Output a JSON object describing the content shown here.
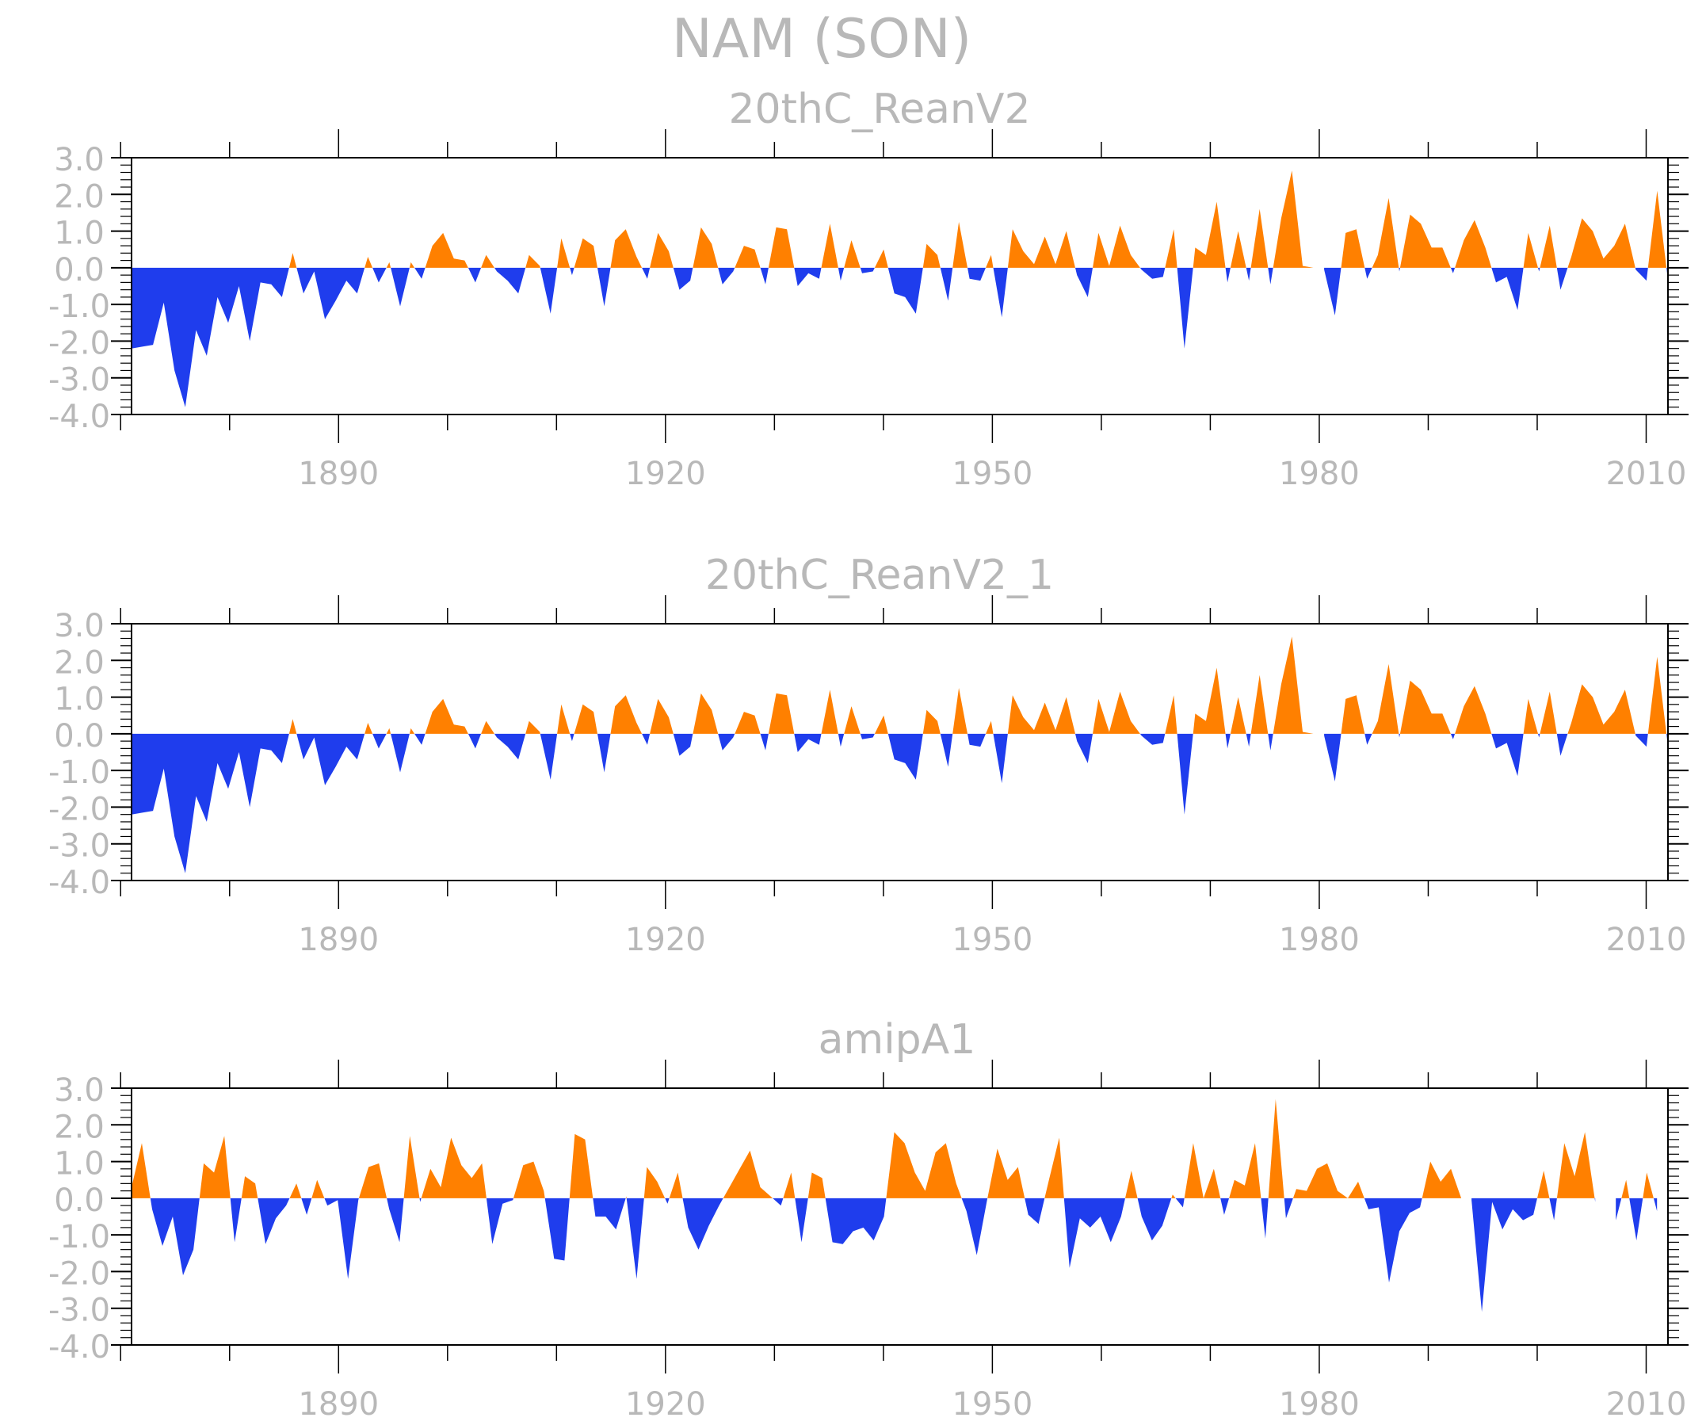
{
  "figure": {
    "title": "NAM (SON)"
  },
  "colors": {
    "positive": "#ff8000",
    "negative": "#1f3ded",
    "frame": "#000000",
    "text": "#b8b8b8"
  },
  "chart_data": [
    {
      "type": "area",
      "title": "20thC_ReanV2",
      "ylim": [
        -4.0,
        3.0
      ],
      "yticks": [
        "3.0",
        "2.0",
        "1.0",
        "0.0",
        "-1.0",
        "-2.0",
        "-3.0",
        "-4.0"
      ],
      "xlim": [
        1871,
        2012
      ],
      "xticks": [
        "1890",
        "1920",
        "1950",
        "1980",
        "2010"
      ],
      "years": [
        1871,
        2012
      ],
      "values": [
        -2.2,
        -2.15,
        -2.1,
        -0.95,
        -2.8,
        -3.8,
        -1.7,
        -2.4,
        -0.8,
        -1.5,
        -0.5,
        -2.0,
        -0.4,
        -0.45,
        -0.8,
        0.4,
        -0.7,
        -0.1,
        -1.4,
        -0.9,
        -0.35,
        -0.7,
        0.3,
        -0.4,
        0.15,
        -1.05,
        0.15,
        -0.3,
        0.6,
        0.95,
        0.25,
        0.2,
        -0.4,
        0.35,
        -0.1,
        -0.35,
        -0.7,
        0.35,
        0.05,
        -1.25,
        0.8,
        -0.2,
        0.8,
        0.6,
        -1.05,
        0.75,
        1.05,
        0.3,
        -0.3,
        0.95,
        0.45,
        -0.6,
        -0.35,
        1.1,
        0.65,
        -0.45,
        -0.1,
        0.6,
        0.5,
        -0.45,
        1.1,
        1.05,
        -0.5,
        -0.15,
        -0.3,
        1.2,
        -0.35,
        0.75,
        -0.15,
        -0.1,
        0.5,
        -0.7,
        -0.8,
        -1.25,
        0.65,
        0.35,
        -0.9,
        1.25,
        -0.3,
        -0.35,
        0.35,
        -1.35,
        1.05,
        0.45,
        0.1,
        0.85,
        0.1,
        1.0,
        -0.2,
        -0.8,
        0.95,
        0.05,
        1.15,
        0.35,
        -0.05,
        -0.3,
        -0.25,
        1.05,
        -2.2,
        0.55,
        0.35,
        1.8,
        -0.4,
        1.0,
        -0.35,
        1.6,
        -0.45,
        1.35,
        2.65,
        0.05,
        0.0,
        -0.05,
        -1.3,
        0.95,
        1.05,
        -0.3,
        0.35,
        1.9,
        -0.1,
        1.45,
        1.2,
        0.55,
        0.55,
        -0.15,
        0.75,
        1.3,
        0.55,
        -0.4,
        -0.25,
        -1.15,
        0.95,
        -0.1,
        1.15,
        -0.6,
        0.3,
        1.35,
        1.0,
        0.25,
        0.6,
        1.2,
        -0.05,
        -0.35,
        2.1,
        -0.35
      ]
    },
    {
      "type": "area",
      "title": "20thC_ReanV2_1",
      "ylim": [
        -4.0,
        3.0
      ],
      "yticks": [
        "3.0",
        "2.0",
        "1.0",
        "0.0",
        "-1.0",
        "-2.0",
        "-3.0",
        "-4.0"
      ],
      "xlim": [
        1871,
        2012
      ],
      "xticks": [
        "1890",
        "1920",
        "1950",
        "1980",
        "2010"
      ],
      "years": [
        1871,
        2012
      ],
      "values": [
        -2.2,
        -2.15,
        -2.1,
        -0.95,
        -2.8,
        -3.8,
        -1.7,
        -2.4,
        -0.8,
        -1.5,
        -0.5,
        -2.0,
        -0.4,
        -0.45,
        -0.8,
        0.4,
        -0.7,
        -0.1,
        -1.4,
        -0.9,
        -0.35,
        -0.7,
        0.3,
        -0.4,
        0.15,
        -1.05,
        0.15,
        -0.3,
        0.6,
        0.95,
        0.25,
        0.2,
        -0.4,
        0.35,
        -0.1,
        -0.35,
        -0.7,
        0.35,
        0.05,
        -1.25,
        0.8,
        -0.2,
        0.8,
        0.6,
        -1.05,
        0.75,
        1.05,
        0.3,
        -0.3,
        0.95,
        0.45,
        -0.6,
        -0.35,
        1.1,
        0.65,
        -0.45,
        -0.1,
        0.6,
        0.5,
        -0.45,
        1.1,
        1.05,
        -0.5,
        -0.15,
        -0.3,
        1.2,
        -0.35,
        0.75,
        -0.15,
        -0.1,
        0.5,
        -0.7,
        -0.8,
        -1.25,
        0.65,
        0.35,
        -0.9,
        1.25,
        -0.3,
        -0.35,
        0.35,
        -1.35,
        1.05,
        0.45,
        0.1,
        0.85,
        0.1,
        1.0,
        -0.2,
        -0.8,
        0.95,
        0.05,
        1.15,
        0.35,
        -0.05,
        -0.3,
        -0.25,
        1.05,
        -2.2,
        0.55,
        0.35,
        1.8,
        -0.4,
        1.0,
        -0.35,
        1.6,
        -0.45,
        1.35,
        2.65,
        0.05,
        0.0,
        -0.05,
        -1.3,
        0.95,
        1.05,
        -0.3,
        0.35,
        1.9,
        -0.1,
        1.45,
        1.2,
        0.55,
        0.55,
        -0.15,
        0.75,
        1.3,
        0.55,
        -0.4,
        -0.25,
        -1.15,
        0.95,
        -0.1,
        1.15,
        -0.6,
        0.3,
        1.35,
        1.0,
        0.25,
        0.6,
        1.2,
        -0.05,
        -0.35,
        2.1,
        -0.35
      ]
    },
    {
      "type": "area",
      "title": "amipA1",
      "ylim": [
        -4.0,
        3.0
      ],
      "yticks": [
        "3.0",
        "2.0",
        "1.0",
        "0.0",
        "-1.0",
        "-2.0",
        "-3.0",
        "-4.0"
      ],
      "xlim": [
        1871,
        2012
      ],
      "xticks": [
        "1890",
        "1920",
        "1950",
        "1980",
        "2010"
      ],
      "years": [
        1871,
        2011
      ],
      "values": [
        0.3,
        1.5,
        -0.3,
        -1.3,
        -0.5,
        -2.1,
        -1.4,
        0.95,
        0.7,
        1.7,
        -1.2,
        0.6,
        0.4,
        -1.25,
        -0.55,
        -0.2,
        0.4,
        -0.45,
        0.5,
        -0.2,
        -0.05,
        -2.2,
        -0.05,
        0.85,
        0.95,
        -0.3,
        -1.2,
        1.7,
        -0.1,
        0.8,
        0.3,
        1.65,
        0.9,
        0.55,
        0.95,
        -1.25,
        -0.15,
        -0.05,
        0.9,
        1.0,
        0.2,
        -1.65,
        -1.7,
        1.75,
        1.6,
        -0.5,
        -0.5,
        -0.85,
        0.05,
        -2.2,
        0.85,
        0.45,
        -0.15,
        0.7,
        -0.8,
        -1.4,
        -0.75,
        -0.2,
        0.3,
        0.8,
        1.3,
        0.3,
        0.05,
        -0.2,
        0.7,
        -1.2,
        0.7,
        0.55,
        -1.2,
        -1.25,
        -0.9,
        -0.8,
        -1.15,
        -0.5,
        1.8,
        1.5,
        0.7,
        0.2,
        1.25,
        1.5,
        0.4,
        -0.35,
        -1.55,
        -0.05,
        1.35,
        0.5,
        0.85,
        -0.45,
        -0.7,
        0.5,
        1.65,
        -1.9,
        -0.55,
        -0.8,
        -0.5,
        -1.2,
        -0.5,
        0.75,
        -0.5,
        -1.15,
        -0.75,
        0.1,
        -0.25,
        1.5,
        0.0,
        0.8,
        -0.45,
        0.5,
        0.35,
        1.5,
        -1.1,
        2.7,
        -0.55,
        0.25,
        0.2,
        0.8,
        0.95,
        0.2,
        0.0,
        0.45,
        -0.3,
        -0.25,
        -2.3,
        -0.9,
        -0.4,
        -0.25,
        1.0,
        0.45,
        0.8,
        0.0,
        -0.05,
        -3.1,
        -0.1,
        -0.85,
        -0.3,
        -0.6,
        -0.45,
        0.75,
        -0.6,
        1.5,
        0.6,
        1.8,
        -0.1,
        0.0,
        -0.6,
        0.5,
        -1.15,
        0.7,
        -0.35
      ]
    }
  ]
}
